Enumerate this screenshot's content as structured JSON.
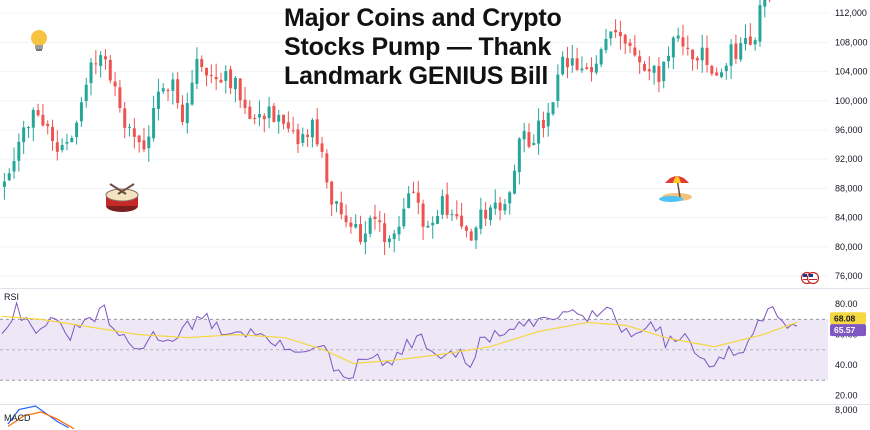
{
  "headline": {
    "line1": "Major Coins and Crypto",
    "line2": "Stocks Pump — Thank",
    "line3": "Landmark GENIUS Bill"
  },
  "colors": {
    "up": "#26a69a",
    "down": "#ef5350",
    "rsi_line": "#7e57c2",
    "rsi_ma": "#f5d742",
    "rsi_band": "#ede7f6",
    "grid": "#f0f3fa",
    "axis_text": "#131722"
  },
  "icons": [
    "lightbulb-icon",
    "drum-icon",
    "beach-umbrella-icon",
    "us-flag-icons"
  ],
  "chart_data": [
    {
      "type": "candlestick",
      "title": "",
      "y_ticks": [
        76000,
        80000,
        84000,
        88000,
        92000,
        96000,
        100000,
        104000,
        108000,
        112000
      ],
      "y_tick_labels": [
        "76,000",
        "80,000",
        "84,000",
        "88,000",
        "92,000",
        "96,000",
        "100,000",
        "104,000",
        "108,000",
        "112,000"
      ],
      "ylim": [
        74500,
        113800
      ],
      "candle_count": 160,
      "anchors": [
        [
          0,
          88000
        ],
        [
          4,
          94500
        ],
        [
          8,
          99000
        ],
        [
          12,
          93500
        ],
        [
          16,
          96500
        ],
        [
          19,
          104500
        ],
        [
          21,
          107000
        ],
        [
          24,
          101000
        ],
        [
          27,
          95500
        ],
        [
          30,
          93500
        ],
        [
          33,
          100000
        ],
        [
          36,
          104000
        ],
        [
          38,
          97000
        ],
        [
          41,
          105500
        ],
        [
          43,
          103000
        ],
        [
          47,
          104000
        ],
        [
          50,
          101000
        ],
        [
          53,
          97500
        ],
        [
          56,
          99000
        ],
        [
          59,
          96000
        ],
        [
          62,
          94000
        ],
        [
          65,
          96500
        ],
        [
          67,
          92000
        ],
        [
          69,
          86500
        ],
        [
          71,
          83500
        ],
        [
          73,
          84000
        ],
        [
          75,
          80500
        ],
        [
          77,
          84500
        ],
        [
          80,
          81000
        ],
        [
          83,
          84000
        ],
        [
          86,
          88500
        ],
        [
          88,
          84000
        ],
        [
          90,
          83000
        ],
        [
          92,
          86000
        ],
        [
          94,
          84500
        ],
        [
          96,
          83500
        ],
        [
          98,
          80000
        ],
        [
          100,
          84000
        ],
        [
          103,
          85500
        ],
        [
          106,
          87000
        ],
        [
          108,
          96000
        ],
        [
          110,
          94500
        ],
        [
          114,
          97500
        ],
        [
          117,
          105000
        ],
        [
          120,
          104500
        ],
        [
          123,
          103500
        ],
        [
          126,
          109000
        ],
        [
          128,
          110500
        ],
        [
          131,
          107000
        ],
        [
          134,
          104000
        ],
        [
          137,
          103500
        ],
        [
          140,
          108000
        ],
        [
          143,
          107000
        ],
        [
          146,
          106000
        ],
        [
          149,
          103000
        ],
        [
          152,
          106500
        ],
        [
          155,
          108000
        ],
        [
          157,
          109000
        ],
        [
          159,
          115000
        ]
      ]
    },
    {
      "type": "line",
      "panel_label": "RSI",
      "series": [
        {
          "name": "",
          "last_value": 65.57
        },
        {
          "name": "",
          "last_value": 68.08
        }
      ],
      "y_ticks": [
        20,
        40,
        60,
        80
      ],
      "y_tick_labels": [
        "20.00",
        "40.00",
        "60.00",
        "80.00"
      ],
      "band": [
        30,
        70
      ],
      "ylim": [
        17,
        88
      ],
      "value_tags": [
        "68.08",
        "65.57"
      ],
      "anchors": [
        [
          0,
          63
        ],
        [
          3,
          78
        ],
        [
          6,
          64
        ],
        [
          10,
          68
        ],
        [
          14,
          60
        ],
        [
          18,
          70
        ],
        [
          21,
          75
        ],
        [
          24,
          58
        ],
        [
          28,
          50
        ],
        [
          31,
          59
        ],
        [
          35,
          58
        ],
        [
          38,
          66
        ],
        [
          42,
          70
        ],
        [
          46,
          61
        ],
        [
          50,
          62
        ],
        [
          54,
          58
        ],
        [
          58,
          50
        ],
        [
          62,
          52
        ],
        [
          66,
          50
        ],
        [
          69,
          33
        ],
        [
          71,
          28
        ],
        [
          73,
          40
        ],
        [
          76,
          46
        ],
        [
          80,
          40
        ],
        [
          83,
          53
        ],
        [
          86,
          58
        ],
        [
          88,
          45
        ],
        [
          91,
          49
        ],
        [
          94,
          46
        ],
        [
          96,
          38
        ],
        [
          98,
          55
        ],
        [
          101,
          60
        ],
        [
          104,
          62
        ],
        [
          108,
          66
        ],
        [
          111,
          70
        ],
        [
          114,
          72
        ],
        [
          117,
          80
        ],
        [
          120,
          73
        ],
        [
          123,
          74
        ],
        [
          125,
          78
        ],
        [
          127,
          65
        ],
        [
          130,
          58
        ],
        [
          133,
          72
        ],
        [
          136,
          55
        ],
        [
          140,
          60
        ],
        [
          143,
          44
        ],
        [
          146,
          40
        ],
        [
          149,
          48
        ],
        [
          152,
          50
        ],
        [
          155,
          65
        ],
        [
          157,
          79
        ],
        [
          159,
          76
        ],
        [
          161,
          68
        ],
        [
          163,
          65.57
        ]
      ],
      "ma_anchors": [
        [
          0,
          72
        ],
        [
          8,
          70
        ],
        [
          18,
          65
        ],
        [
          28,
          60
        ],
        [
          38,
          58
        ],
        [
          48,
          60
        ],
        [
          58,
          58
        ],
        [
          66,
          50
        ],
        [
          72,
          41
        ],
        [
          80,
          43
        ],
        [
          90,
          47
        ],
        [
          100,
          52
        ],
        [
          110,
          62
        ],
        [
          120,
          68
        ],
        [
          128,
          66
        ],
        [
          136,
          58
        ],
        [
          146,
          52
        ],
        [
          156,
          60
        ],
        [
          163,
          68.08
        ]
      ]
    },
    {
      "type": "line",
      "panel_label": "MACD",
      "y_ticks": [
        8000
      ],
      "y_tick_labels": [
        "8,000"
      ],
      "anchors": [
        [
          0,
          0.25
        ],
        [
          2,
          0.85
        ],
        [
          5,
          1
        ],
        [
          9,
          0.35
        ],
        [
          11,
          0.1
        ]
      ],
      "signal_anchors": [
        [
          0,
          0.15
        ],
        [
          3,
          0.6
        ],
        [
          6,
          0.75
        ],
        [
          9,
          0.45
        ],
        [
          12,
          0.05
        ]
      ]
    }
  ]
}
